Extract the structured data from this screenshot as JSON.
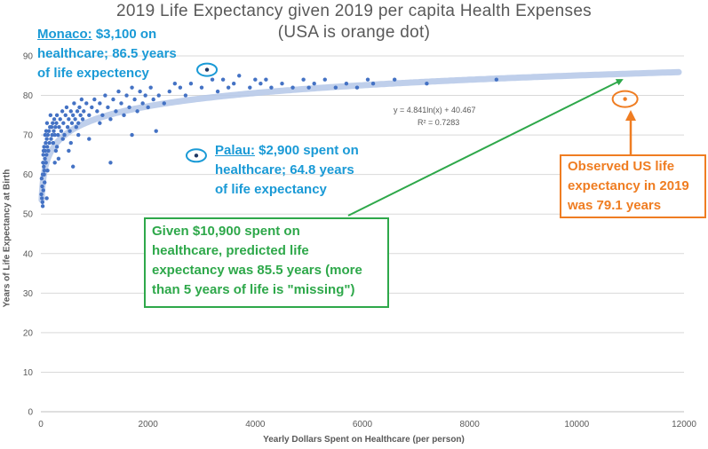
{
  "chart_data": {
    "type": "scatter",
    "title": "2019 Life Expectancy given 2019 per capita Health Expenses",
    "subtitle": "(USA is orange dot)",
    "xlabel": "Yearly Dollars Spent on Healthcare (per person)",
    "ylabel": "Years of Life Expectancy at Birth",
    "xlim": [
      0,
      12000
    ],
    "ylim": [
      0,
      90
    ],
    "xticks": [
      0,
      2000,
      4000,
      6000,
      8000,
      10000,
      12000
    ],
    "yticks": [
      0,
      10,
      20,
      30,
      40,
      50,
      60,
      70,
      80,
      90
    ],
    "grid": "horizontal",
    "trendline": {
      "type": "logarithmic",
      "equation": "y = 4.841ln(x) + 40.467",
      "r_squared": "R² = 0.7283",
      "a": 4.841,
      "b": 40.467,
      "color": "#b4c7e7"
    },
    "series": [
      {
        "color": "#4472c4",
        "points": [
          [
            20,
            54
          ],
          [
            25,
            57
          ],
          [
            30,
            53
          ],
          [
            35,
            60
          ],
          [
            40,
            63
          ],
          [
            45,
            65
          ],
          [
            50,
            66
          ],
          [
            55,
            62
          ],
          [
            60,
            67
          ],
          [
            65,
            61
          ],
          [
            70,
            58
          ],
          [
            75,
            64
          ],
          [
            80,
            70
          ],
          [
            85,
            66
          ],
          [
            90,
            68
          ],
          [
            95,
            63
          ],
          [
            100,
            71
          ],
          [
            105,
            65
          ],
          [
            110,
            69
          ],
          [
            115,
            73
          ],
          [
            120,
            67
          ],
          [
            125,
            61
          ],
          [
            130,
            70
          ],
          [
            140,
            66
          ],
          [
            150,
            71
          ],
          [
            160,
            68
          ],
          [
            170,
            72
          ],
          [
            180,
            75
          ],
          [
            190,
            69
          ],
          [
            200,
            72
          ],
          [
            210,
            70
          ],
          [
            220,
            73
          ],
          [
            230,
            68
          ],
          [
            240,
            71
          ],
          [
            250,
            74
          ],
          [
            260,
            70
          ],
          [
            270,
            72
          ],
          [
            280,
            66
          ],
          [
            290,
            73
          ],
          [
            300,
            75
          ],
          [
            320,
            70
          ],
          [
            340,
            72
          ],
          [
            360,
            74
          ],
          [
            380,
            71
          ],
          [
            400,
            76
          ],
          [
            420,
            73
          ],
          [
            440,
            70
          ],
          [
            460,
            75
          ],
          [
            480,
            77
          ],
          [
            500,
            72
          ],
          [
            520,
            74
          ],
          [
            540,
            71
          ],
          [
            560,
            76
          ],
          [
            580,
            73
          ],
          [
            600,
            75
          ],
          [
            620,
            78
          ],
          [
            640,
            74
          ],
          [
            660,
            72
          ],
          [
            680,
            76
          ],
          [
            700,
            73
          ],
          [
            720,
            77
          ],
          [
            740,
            75
          ],
          [
            760,
            79
          ],
          [
            780,
            74
          ],
          [
            800,
            76
          ],
          [
            850,
            78
          ],
          [
            900,
            75
          ],
          [
            950,
            77
          ],
          [
            1000,
            79
          ],
          [
            1050,
            76
          ],
          [
            1100,
            78
          ],
          [
            1150,
            75
          ],
          [
            1200,
            80
          ],
          [
            1250,
            77
          ],
          [
            1300,
            74
          ],
          [
            1350,
            79
          ],
          [
            1400,
            76
          ],
          [
            1450,
            81
          ],
          [
            1500,
            78
          ],
          [
            1550,
            75
          ],
          [
            1600,
            80
          ],
          [
            1650,
            77
          ],
          [
            1700,
            82
          ],
          [
            1750,
            79
          ],
          [
            1800,
            76
          ],
          [
            1850,
            81
          ],
          [
            1900,
            78
          ],
          [
            1950,
            80
          ],
          [
            2000,
            77
          ],
          [
            2050,
            82
          ],
          [
            2100,
            79
          ],
          [
            2150,
            71
          ],
          [
            2200,
            80
          ],
          [
            2300,
            78
          ],
          [
            2400,
            81
          ],
          [
            2500,
            83
          ],
          [
            2600,
            82
          ],
          [
            2700,
            80
          ],
          [
            2800,
            83
          ],
          [
            3000,
            82
          ],
          [
            3200,
            84
          ],
          [
            3300,
            81
          ],
          [
            3400,
            84
          ],
          [
            3500,
            82
          ],
          [
            3600,
            83
          ],
          [
            3700,
            85
          ],
          [
            3900,
            82
          ],
          [
            4000,
            84
          ],
          [
            4100,
            83
          ],
          [
            4300,
            82
          ],
          [
            4500,
            83
          ],
          [
            4700,
            82
          ],
          [
            4900,
            84
          ],
          [
            5100,
            83
          ],
          [
            5300,
            84
          ],
          [
            5500,
            82
          ],
          [
            5700,
            83
          ],
          [
            5900,
            82
          ],
          [
            6100,
            84
          ],
          [
            6200,
            83
          ],
          [
            6600,
            84
          ],
          [
            7200,
            83
          ],
          [
            8500,
            84
          ],
          [
            10,
            55
          ],
          [
            15,
            59
          ],
          [
            35,
            52
          ],
          [
            45,
            56
          ],
          [
            60,
            60
          ],
          [
            110,
            54
          ],
          [
            260,
            63
          ],
          [
            300,
            67
          ],
          [
            330,
            64
          ],
          [
            410,
            69
          ],
          [
            520,
            66
          ],
          [
            560,
            68
          ],
          [
            600,
            62
          ],
          [
            700,
            70
          ],
          [
            900,
            69
          ],
          [
            1100,
            73
          ],
          [
            1300,
            63
          ],
          [
            1700,
            70
          ],
          [
            5000,
            82
          ],
          [
            4200,
            84
          ]
        ]
      },
      {
        "color": "#1f3864",
        "points": [
          [
            3100,
            86.5
          ],
          [
            2900,
            64.8
          ]
        ]
      },
      {
        "color": "#ef7d22",
        "points": [
          [
            10900,
            79.1
          ]
        ]
      }
    ]
  },
  "annotations": {
    "monaco_name": "Monaco:",
    "monaco_line1": " $3,100 on",
    "monaco_line2": "healthcare; 86.5 years",
    "monaco_line3": "of life expectency",
    "palau_name": "Palau:",
    "palau_line1": " $2,900 spent on",
    "palau_line2": "healthcare; 64.8 years",
    "palau_line3": "of life expectancy",
    "predicted_line1": "Given $10,900 spent on",
    "predicted_line2": "healthcare, predicted life",
    "predicted_line3": "expectancy was 85.5 years (more",
    "predicted_line4": "than 5 years of life is \"missing\")",
    "observed_line1": "Observed US life",
    "observed_line2": "expectancy in 2019",
    "observed_line3": "was 79.1 years"
  },
  "colors": {
    "annotation_blue": "#1a9ad6",
    "annotation_green": "#2ea84a",
    "annotation_orange": "#ef7d22"
  }
}
